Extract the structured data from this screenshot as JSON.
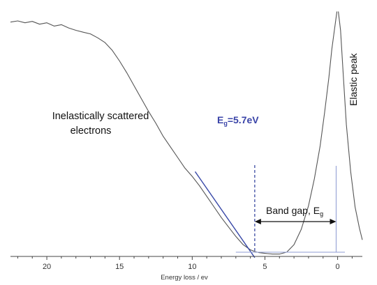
{
  "chart_data": {
    "type": "line",
    "xlabel": "Energy loss / ev",
    "x_reversed": true,
    "xlim": [
      22.5,
      -1.7
    ],
    "ylim": [
      0,
      100
    ],
    "x_ticks": [
      20,
      15,
      10,
      5,
      0
    ],
    "y_axis_visible": false,
    "grid": false,
    "series": [
      {
        "name": "",
        "color": "#555555",
        "x": [
          22.5,
          22,
          21.5,
          21,
          20.5,
          20,
          19.5,
          19,
          18.5,
          18,
          17.5,
          17,
          16.5,
          16,
          15.5,
          15,
          14.5,
          14,
          13.5,
          13,
          12.5,
          12,
          11.5,
          11,
          10.5,
          10,
          9.5,
          9,
          8.5,
          8,
          7.5,
          7,
          6.5,
          6,
          5.7,
          5.4,
          5,
          4.5,
          4,
          3.5,
          3,
          2.5,
          2,
          1.6,
          1.2,
          0.9,
          0.6,
          0.4,
          0.2,
          0.05
        ],
        "y": [
          99.5,
          100,
          99.2,
          99.8,
          98.6,
          99.2,
          97.8,
          98.4,
          97.0,
          96.0,
          95.2,
          94.5,
          92.8,
          90.8,
          87.5,
          83.0,
          78.0,
          72.5,
          67.0,
          61.5,
          56.5,
          51.0,
          46.5,
          42.0,
          37.5,
          34.0,
          30.0,
          25.5,
          21.0,
          16.5,
          12.5,
          8.5,
          5.0,
          2.8,
          2.1,
          1.6,
          1.3,
          1.0,
          1.0,
          1.8,
          5.0,
          11.5,
          21.5,
          33.0,
          47.0,
          61.0,
          76.0,
          88.0,
          97.0,
          104.0
        ]
      },
      {
        "name": "",
        "color": "#555555",
        "x": [
          -0.05,
          -0.2,
          -0.4,
          -0.6,
          -0.9,
          -1.2,
          -1.5,
          -1.7
        ],
        "y": [
          104.0,
          96.0,
          76.0,
          56.0,
          36.0,
          21.0,
          12.0,
          7.0
        ]
      }
    ],
    "fit_line": {
      "color": "#3a4aa8",
      "x": [
        9.8,
        5.7
      ],
      "y": [
        36.0,
        -0.5
      ]
    },
    "baseline_line": {
      "color": "#9aa6d8",
      "x": [
        7.0,
        -0.5
      ],
      "y": [
        1.8,
        1.8
      ]
    },
    "eg_marker_x": 5.7,
    "zero_marker_x": 0.1,
    "annotations": {
      "inelastic_line1": "Inelastically scattered",
      "inelastic_line2": "electrons",
      "eg_main": "E",
      "eg_sub": "g",
      "eg_value": "=5.7eV",
      "band_gap_main": "Band gap,  E",
      "band_gap_sub": "g",
      "elastic_peak": "Elastic peak"
    }
  }
}
